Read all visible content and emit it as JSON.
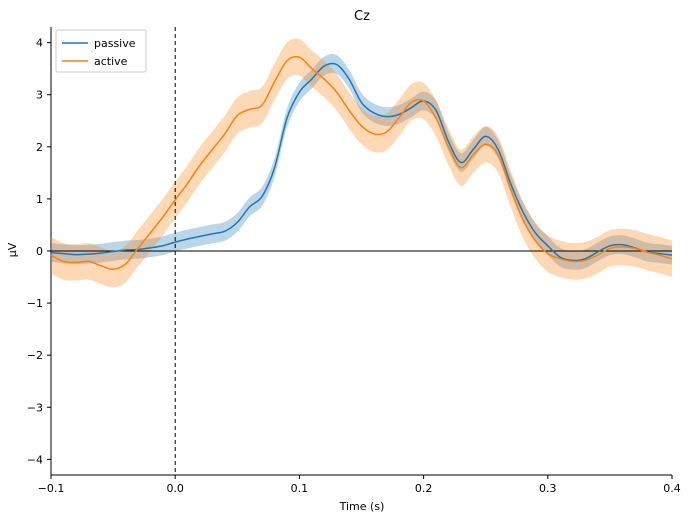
{
  "chart_data": {
    "type": "line",
    "title": "Cz",
    "xlabel": "Time (s)",
    "ylabel": "µV",
    "xlim": [
      -0.1,
      0.4
    ],
    "ylim": [
      -4.3,
      4.3
    ],
    "x_ticks": [
      -0.1,
      0.0,
      0.1,
      0.2,
      0.3,
      0.4
    ],
    "x_tick_labels": [
      "−0.1",
      "0.0",
      "0.1",
      "0.2",
      "0.3",
      "0.4"
    ],
    "y_ticks": [
      -4,
      -3,
      -2,
      -1,
      0,
      1,
      2,
      3,
      4
    ],
    "y_tick_labels": [
      "−4",
      "−3",
      "−2",
      "−1",
      "0",
      "1",
      "2",
      "3",
      "4"
    ],
    "grid": false,
    "legend_position": "top-left",
    "reference_lines": {
      "vertical_dashed_x": 0.0,
      "horizontal_y": 0
    },
    "series": [
      {
        "name": "passive",
        "color": "#1f77b4",
        "points": [
          [
            -0.1,
            -0.03
          ],
          [
            -0.09,
            -0.05
          ],
          [
            -0.08,
            -0.07
          ],
          [
            -0.07,
            -0.06
          ],
          [
            -0.06,
            -0.04
          ],
          [
            -0.05,
            -0.01
          ],
          [
            -0.04,
            0.02
          ],
          [
            -0.03,
            0.03
          ],
          [
            -0.02,
            0.06
          ],
          [
            -0.01,
            0.1
          ],
          [
            0.0,
            0.17
          ],
          [
            0.01,
            0.23
          ],
          [
            0.02,
            0.28
          ],
          [
            0.03,
            0.33
          ],
          [
            0.04,
            0.38
          ],
          [
            0.05,
            0.55
          ],
          [
            0.06,
            0.85
          ],
          [
            0.07,
            1.05
          ],
          [
            0.08,
            1.6
          ],
          [
            0.09,
            2.55
          ],
          [
            0.1,
            3.05
          ],
          [
            0.11,
            3.3
          ],
          [
            0.12,
            3.55
          ],
          [
            0.13,
            3.58
          ],
          [
            0.14,
            3.3
          ],
          [
            0.15,
            2.85
          ],
          [
            0.16,
            2.65
          ],
          [
            0.17,
            2.58
          ],
          [
            0.18,
            2.62
          ],
          [
            0.19,
            2.75
          ],
          [
            0.2,
            2.88
          ],
          [
            0.21,
            2.7
          ],
          [
            0.22,
            2.1
          ],
          [
            0.23,
            1.7
          ],
          [
            0.24,
            1.95
          ],
          [
            0.25,
            2.2
          ],
          [
            0.26,
            1.95
          ],
          [
            0.27,
            1.3
          ],
          [
            0.28,
            0.75
          ],
          [
            0.29,
            0.35
          ],
          [
            0.3,
            0.1
          ],
          [
            0.31,
            -0.12
          ],
          [
            0.32,
            -0.18
          ],
          [
            0.33,
            -0.15
          ],
          [
            0.34,
            -0.02
          ],
          [
            0.35,
            0.1
          ],
          [
            0.36,
            0.12
          ],
          [
            0.37,
            0.06
          ],
          [
            0.38,
            -0.02
          ],
          [
            0.39,
            -0.05
          ],
          [
            0.4,
            -0.08
          ]
        ],
        "ci_halfwidth": 0.18
      },
      {
        "name": "active",
        "color": "#ff7f0e",
        "points": [
          [
            -0.1,
            -0.08
          ],
          [
            -0.09,
            -0.2
          ],
          [
            -0.08,
            -0.22
          ],
          [
            -0.07,
            -0.2
          ],
          [
            -0.06,
            -0.28
          ],
          [
            -0.05,
            -0.35
          ],
          [
            -0.04,
            -0.25
          ],
          [
            -0.03,
            0.05
          ],
          [
            -0.02,
            0.35
          ],
          [
            -0.01,
            0.65
          ],
          [
            0.0,
            0.98
          ],
          [
            0.01,
            1.3
          ],
          [
            0.02,
            1.65
          ],
          [
            0.03,
            1.95
          ],
          [
            0.04,
            2.25
          ],
          [
            0.05,
            2.6
          ],
          [
            0.06,
            2.72
          ],
          [
            0.07,
            2.8
          ],
          [
            0.08,
            3.25
          ],
          [
            0.09,
            3.65
          ],
          [
            0.1,
            3.72
          ],
          [
            0.11,
            3.5
          ],
          [
            0.12,
            3.3
          ],
          [
            0.13,
            3.05
          ],
          [
            0.14,
            2.7
          ],
          [
            0.15,
            2.4
          ],
          [
            0.16,
            2.25
          ],
          [
            0.17,
            2.28
          ],
          [
            0.18,
            2.55
          ],
          [
            0.19,
            2.85
          ],
          [
            0.2,
            2.88
          ],
          [
            0.21,
            2.55
          ],
          [
            0.22,
            2.0
          ],
          [
            0.23,
            1.6
          ],
          [
            0.24,
            1.85
          ],
          [
            0.25,
            2.05
          ],
          [
            0.26,
            1.85
          ],
          [
            0.27,
            1.2
          ],
          [
            0.28,
            0.6
          ],
          [
            0.29,
            0.2
          ],
          [
            0.3,
            -0.05
          ],
          [
            0.31,
            -0.15
          ],
          [
            0.32,
            -0.2
          ],
          [
            0.33,
            -0.18
          ],
          [
            0.34,
            -0.08
          ],
          [
            0.35,
            0.05
          ],
          [
            0.36,
            0.08
          ],
          [
            0.37,
            0.05
          ],
          [
            0.38,
            -0.02
          ],
          [
            0.39,
            -0.08
          ],
          [
            0.4,
            -0.15
          ]
        ],
        "ci_halfwidth": 0.35
      }
    ]
  }
}
